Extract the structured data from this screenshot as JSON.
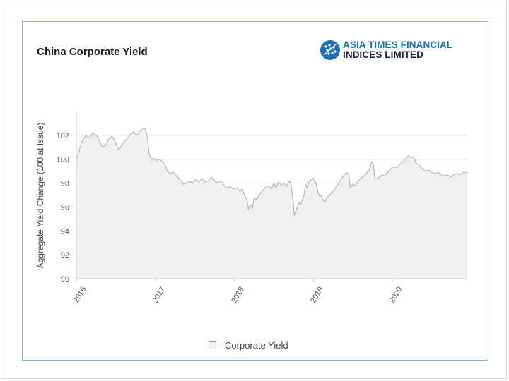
{
  "title": "China Corporate Yield",
  "logo": {
    "line1": "ASIA TIMES FINANCIAL",
    "line2": "INDICES LIMITED",
    "icon": "atfi-logo-icon",
    "colors": {
      "brand_blue": "#1e6fb5",
      "brand_navy": "#1a1f4a"
    }
  },
  "legend": {
    "label": "Corporate Yield"
  },
  "chart_data": {
    "type": "area",
    "title": "China Corporate Yield",
    "ylabel": "Aggregate Yield Change (100 at Issue)",
    "xlabel": "",
    "ylim": [
      90,
      104
    ],
    "yticks": [
      90,
      92,
      94,
      96,
      98,
      100,
      102
    ],
    "xlim": [
      2016.0,
      2020.95
    ],
    "xticks": [
      {
        "label": "2016",
        "value": 2016.0
      },
      {
        "label": "2017",
        "value": 2017.0
      },
      {
        "label": "2018",
        "value": 2018.0
      },
      {
        "label": "2019",
        "value": 2019.0
      },
      {
        "label": "2020",
        "value": 2020.0
      }
    ],
    "grid": "horizontal",
    "legend_position": "bottom",
    "series": [
      {
        "name": "Corporate Yield",
        "color": "#b8b8b8",
        "fill": "#f0f0f0",
        "points": [
          [
            2016.0,
            100.0
          ],
          [
            2016.03,
            100.6
          ],
          [
            2016.06,
            101.3
          ],
          [
            2016.09,
            101.7
          ],
          [
            2016.12,
            102.0
          ],
          [
            2016.15,
            101.8
          ],
          [
            2016.18,
            101.9
          ],
          [
            2016.21,
            102.2
          ],
          [
            2016.25,
            102.0
          ],
          [
            2016.29,
            101.6
          ],
          [
            2016.33,
            101.0
          ],
          [
            2016.37,
            101.2
          ],
          [
            2016.41,
            101.7
          ],
          [
            2016.45,
            101.9
          ],
          [
            2016.49,
            101.5
          ],
          [
            2016.53,
            100.8
          ],
          [
            2016.57,
            101.1
          ],
          [
            2016.61,
            101.5
          ],
          [
            2016.65,
            101.8
          ],
          [
            2016.69,
            102.1
          ],
          [
            2016.73,
            102.3
          ],
          [
            2016.77,
            102.0
          ],
          [
            2016.81,
            102.4
          ],
          [
            2016.85,
            102.6
          ],
          [
            2016.88,
            102.5
          ],
          [
            2016.9,
            101.8
          ],
          [
            2016.92,
            100.5
          ],
          [
            2016.95,
            99.9
          ],
          [
            2016.98,
            100.1
          ],
          [
            2017.01,
            99.9
          ],
          [
            2017.05,
            100.0
          ],
          [
            2017.09,
            99.8
          ],
          [
            2017.12,
            99.6
          ],
          [
            2017.15,
            99.0
          ],
          [
            2017.19,
            98.8
          ],
          [
            2017.23,
            98.9
          ],
          [
            2017.27,
            98.6
          ],
          [
            2017.31,
            98.3
          ],
          [
            2017.35,
            97.9
          ],
          [
            2017.39,
            98.0
          ],
          [
            2017.43,
            98.2
          ],
          [
            2017.47,
            98.0
          ],
          [
            2017.51,
            98.3
          ],
          [
            2017.55,
            98.1
          ],
          [
            2017.59,
            98.4
          ],
          [
            2017.63,
            98.1
          ],
          [
            2017.67,
            98.2
          ],
          [
            2017.71,
            98.5
          ],
          [
            2017.75,
            98.2
          ],
          [
            2017.79,
            98.0
          ],
          [
            2017.83,
            98.2
          ],
          [
            2017.87,
            97.8
          ],
          [
            2017.91,
            97.6
          ],
          [
            2017.95,
            97.7
          ],
          [
            2017.99,
            97.5
          ],
          [
            2018.03,
            97.6
          ],
          [
            2018.07,
            97.3
          ],
          [
            2018.1,
            97.5
          ],
          [
            2018.13,
            97.0
          ],
          [
            2018.16,
            96.6
          ],
          [
            2018.18,
            95.8
          ],
          [
            2018.2,
            96.2
          ],
          [
            2018.23,
            95.9
          ],
          [
            2018.25,
            96.8
          ],
          [
            2018.28,
            96.6
          ],
          [
            2018.31,
            97.0
          ],
          [
            2018.35,
            97.3
          ],
          [
            2018.39,
            97.6
          ],
          [
            2018.43,
            97.8
          ],
          [
            2018.47,
            97.5
          ],
          [
            2018.5,
            98.0
          ],
          [
            2018.53,
            97.6
          ],
          [
            2018.56,
            98.1
          ],
          [
            2018.6,
            97.8
          ],
          [
            2018.63,
            98.0
          ],
          [
            2018.66,
            97.7
          ],
          [
            2018.7,
            98.2
          ],
          [
            2018.72,
            97.8
          ],
          [
            2018.74,
            96.8
          ],
          [
            2018.76,
            95.3
          ],
          [
            2018.78,
            95.7
          ],
          [
            2018.8,
            96.0
          ],
          [
            2018.82,
            96.4
          ],
          [
            2018.84,
            96.2
          ],
          [
            2018.86,
            96.6
          ],
          [
            2018.88,
            96.9
          ],
          [
            2018.9,
            97.9
          ],
          [
            2018.92,
            97.6
          ],
          [
            2018.94,
            98.0
          ],
          [
            2018.97,
            98.3
          ],
          [
            2019.0,
            98.4
          ],
          [
            2019.02,
            98.2
          ],
          [
            2019.04,
            97.9
          ],
          [
            2019.06,
            97.2
          ],
          [
            2019.08,
            96.9
          ],
          [
            2019.1,
            97.0
          ],
          [
            2019.12,
            96.6
          ],
          [
            2019.15,
            96.5
          ],
          [
            2019.18,
            96.8
          ],
          [
            2019.22,
            97.1
          ],
          [
            2019.26,
            97.4
          ],
          [
            2019.3,
            97.8
          ],
          [
            2019.34,
            98.2
          ],
          [
            2019.38,
            98.6
          ],
          [
            2019.42,
            98.9
          ],
          [
            2019.45,
            98.7
          ],
          [
            2019.47,
            97.6
          ],
          [
            2019.5,
            97.9
          ],
          [
            2019.53,
            97.8
          ],
          [
            2019.56,
            98.1
          ],
          [
            2019.6,
            98.4
          ],
          [
            2019.64,
            98.6
          ],
          [
            2019.68,
            98.9
          ],
          [
            2019.71,
            99.1
          ],
          [
            2019.74,
            99.8
          ],
          [
            2019.76,
            99.6
          ],
          [
            2019.78,
            98.3
          ],
          [
            2019.81,
            98.4
          ],
          [
            2019.84,
            98.5
          ],
          [
            2019.87,
            98.7
          ],
          [
            2019.9,
            98.6
          ],
          [
            2019.94,
            98.9
          ],
          [
            2019.98,
            99.2
          ],
          [
            2020.02,
            99.4
          ],
          [
            2020.06,
            99.3
          ],
          [
            2020.1,
            99.6
          ],
          [
            2020.14,
            99.8
          ],
          [
            2020.18,
            100.1
          ],
          [
            2020.21,
            100.3
          ],
          [
            2020.24,
            100.1
          ],
          [
            2020.27,
            100.2
          ],
          [
            2020.3,
            99.7
          ],
          [
            2020.34,
            99.5
          ],
          [
            2020.38,
            99.2
          ],
          [
            2020.42,
            99.0
          ],
          [
            2020.46,
            99.1
          ],
          [
            2020.5,
            98.9
          ],
          [
            2020.54,
            98.8
          ],
          [
            2020.58,
            98.9
          ],
          [
            2020.62,
            98.7
          ],
          [
            2020.66,
            98.6
          ],
          [
            2020.7,
            98.7
          ],
          [
            2020.74,
            98.5
          ],
          [
            2020.78,
            98.7
          ],
          [
            2020.82,
            98.8
          ],
          [
            2020.86,
            98.7
          ],
          [
            2020.9,
            98.9
          ],
          [
            2020.95,
            98.9
          ]
        ]
      }
    ]
  }
}
